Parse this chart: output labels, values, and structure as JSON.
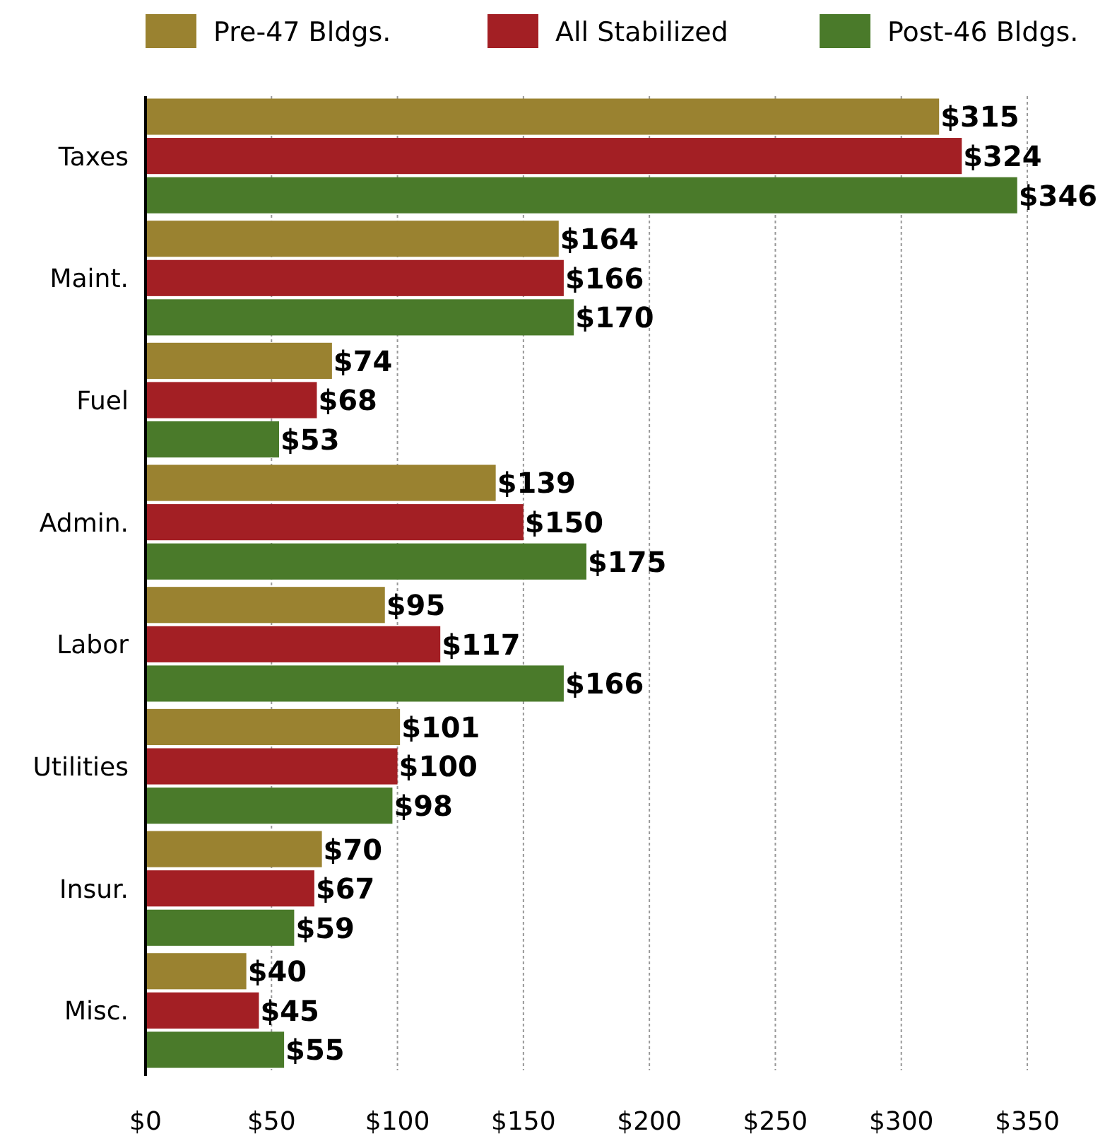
{
  "chart_data": {
    "type": "bar",
    "orientation": "horizontal",
    "categories": [
      "Taxes",
      "Maint.",
      "Fuel",
      "Admin.",
      "Labor",
      "Utilities",
      "Insur.",
      "Misc."
    ],
    "series": [
      {
        "name": "Pre-47 Bldgs.",
        "color": "#9a8230",
        "values": [
          315,
          164,
          74,
          139,
          95,
          101,
          70,
          40
        ],
        "value_labels": [
          "$315",
          "$164",
          "$74",
          "$139",
          "$95",
          "$101",
          "$70",
          "$40"
        ]
      },
      {
        "name": "All Stabilized",
        "color": "#a31f24",
        "values": [
          324,
          166,
          68,
          150,
          117,
          100,
          67,
          45
        ],
        "value_labels": [
          "$324",
          "$166",
          "$68",
          "$150",
          "$117",
          "$100",
          "$67",
          "$45"
        ]
      },
      {
        "name": "Post-46 Bldgs.",
        "color": "#4a7a2a",
        "values": [
          346,
          170,
          53,
          175,
          166,
          98,
          59,
          55
        ],
        "value_labels": [
          "$346",
          "$170",
          "$53",
          "$175",
          "$166",
          "$98",
          "$59",
          "$55"
        ]
      }
    ],
    "xlim": [
      0,
      350
    ],
    "xticks": [
      {
        "value": 0,
        "label": "$0"
      },
      {
        "value": 50,
        "label": "$50"
      },
      {
        "value": 100,
        "label": "$100"
      },
      {
        "value": 150,
        "label": "$150"
      },
      {
        "value": 200,
        "label": "$200"
      },
      {
        "value": 250,
        "label": "$250"
      },
      {
        "value": 300,
        "label": "$300"
      },
      {
        "value": 350,
        "label": "$350"
      }
    ],
    "grid": "x",
    "legend": "top"
  }
}
